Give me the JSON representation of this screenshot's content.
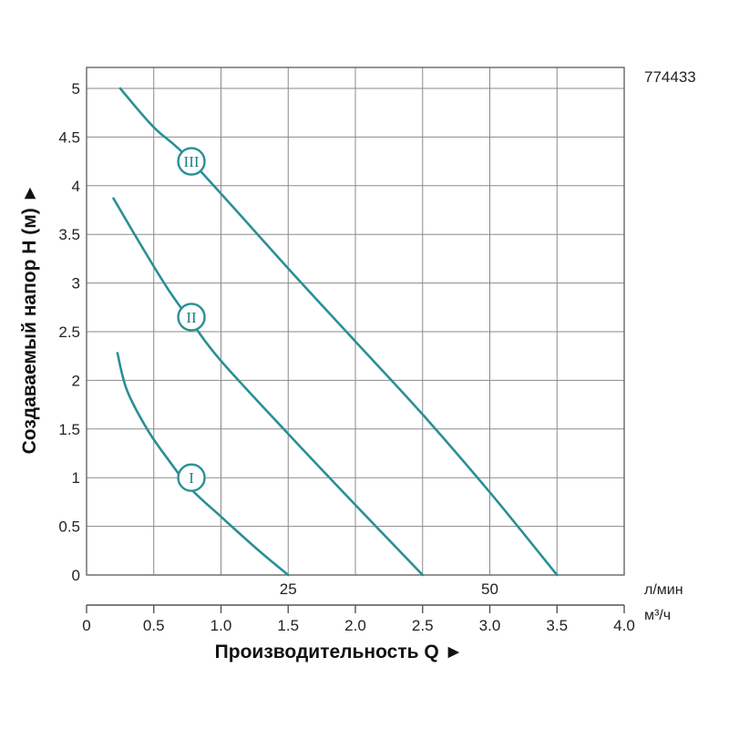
{
  "product_code": "774433",
  "chart_data": {
    "type": "line",
    "title": "",
    "ylabel": "Создаваемый напор Н (м) ►",
    "xlabel": "Производительность Q ►",
    "x_unit_primary": "м³/ч",
    "x_unit_secondary": "л/мин",
    "xlim": [
      0,
      4.0
    ],
    "ylim": [
      0,
      5
    ],
    "x_ticks": [
      {
        "value": 0,
        "label": "0"
      },
      {
        "value": 0.5,
        "label": "0.5"
      },
      {
        "value": 1.0,
        "label": "1.0"
      },
      {
        "value": 1.5,
        "label": "1.5"
      },
      {
        "value": 2.0,
        "label": "2.0"
      },
      {
        "value": 2.5,
        "label": "2.5"
      },
      {
        "value": 3.0,
        "label": "3.0"
      },
      {
        "value": 3.5,
        "label": "3.5"
      },
      {
        "value": 4.0,
        "label": "4.0"
      }
    ],
    "x_ticks_secondary": [
      {
        "value": 1.5,
        "label": "25"
      },
      {
        "value": 3.0,
        "label": "50"
      }
    ],
    "y_ticks": [
      {
        "value": 0,
        "label": "0"
      },
      {
        "value": 0.5,
        "label": "0.5"
      },
      {
        "value": 1,
        "label": "1"
      },
      {
        "value": 1.5,
        "label": "1.5"
      },
      {
        "value": 2,
        "label": "2"
      },
      {
        "value": 2.5,
        "label": "2.5"
      },
      {
        "value": 3,
        "label": "3"
      },
      {
        "value": 3.5,
        "label": "3.5"
      },
      {
        "value": 4,
        "label": "4"
      },
      {
        "value": 4.5,
        "label": "4.5"
      },
      {
        "value": 5,
        "label": "5"
      }
    ],
    "grid": true,
    "line_color": "#2a8f96",
    "series": [
      {
        "name": "I",
        "label_point": [
          0.78,
          1.0
        ],
        "x": [
          0.23,
          0.3,
          0.45,
          0.6,
          0.78,
          1.0,
          1.2,
          1.35,
          1.5
        ],
        "y": [
          2.28,
          1.9,
          1.5,
          1.2,
          0.88,
          0.6,
          0.35,
          0.17,
          0
        ]
      },
      {
        "name": "II",
        "label_point": [
          0.78,
          2.65
        ],
        "x": [
          0.2,
          0.4,
          0.6,
          0.78,
          1.0,
          1.5,
          2.0,
          2.5
        ],
        "y": [
          3.87,
          3.4,
          2.95,
          2.6,
          2.2,
          1.45,
          0.72,
          0
        ]
      },
      {
        "name": "III",
        "label_point": [
          0.78,
          4.25
        ],
        "x": [
          0.25,
          0.5,
          0.78,
          1.5,
          2.0,
          2.5,
          3.0,
          3.5
        ],
        "y": [
          5.0,
          4.6,
          4.25,
          3.15,
          2.4,
          1.65,
          0.85,
          0
        ]
      }
    ]
  }
}
